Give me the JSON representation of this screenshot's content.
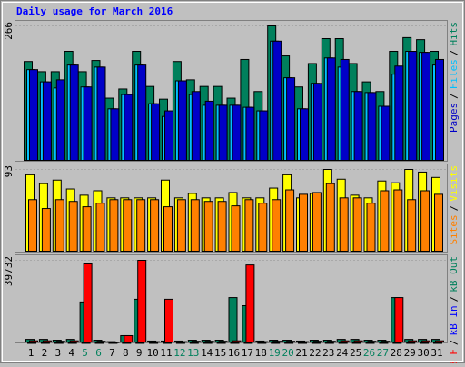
{
  "chart_data": [
    {
      "type": "bar",
      "title": "Daily usage for March 2016",
      "title_color": "#0000ff",
      "ylim": [
        0,
        266
      ],
      "separator": "/",
      "series": [
        {
          "name": "Hits",
          "color": "#00805c",
          "values": [
            196,
            176,
            176,
            216,
            176,
            198,
            124,
            142,
            216,
            147,
            122,
            196,
            160,
            147,
            147,
            124,
            200,
            137,
            266,
            207,
            146,
            192,
            241,
            241,
            192,
            156,
            137,
            216,
            243,
            239,
            216
          ]
        },
        {
          "name": "Files",
          "color": "#00c0ff",
          "values": [
            180,
            156,
            144,
            189,
            146,
            185,
            103,
            131,
            189,
            113,
            88,
            158,
            131,
            110,
            110,
            110,
            106,
            99,
            236,
            164,
            103,
            153,
            203,
            185,
            137,
            135,
            108,
            171,
            216,
            214,
            189
          ]
        },
        {
          "name": "Pages",
          "color": "#0000c8",
          "values": [
            180,
            156,
            160,
            189,
            146,
            185,
            103,
            131,
            189,
            113,
            99,
            158,
            137,
            118,
            110,
            110,
            106,
            99,
            236,
            164,
            103,
            153,
            203,
            200,
            137,
            135,
            108,
            187,
            216,
            214,
            200
          ]
        }
      ]
    },
    {
      "type": "bar",
      "ylim": [
        0,
        93
      ],
      "separator": "/",
      "series": [
        {
          "name": "Visits",
          "color": "#ffff00",
          "values": [
            87,
            77,
            81,
            71,
            64,
            69,
            61,
            61,
            61,
            61,
            81,
            61,
            66,
            61,
            61,
            67,
            61,
            61,
            72,
            87,
            61,
            66,
            93,
            82,
            64,
            61,
            80,
            78,
            93,
            90,
            84
          ]
        },
        {
          "name": "Sites",
          "color": "#ff8000",
          "values": [
            59,
            49,
            59,
            57,
            51,
            55,
            59,
            59,
            59,
            59,
            51,
            59,
            59,
            57,
            57,
            52,
            59,
            55,
            59,
            70,
            65,
            67,
            77,
            61,
            61,
            55,
            69,
            70,
            59,
            69,
            65
          ]
        }
      ]
    },
    {
      "type": "bar",
      "ylim": [
        0,
        39732
      ],
      "separator": "/",
      "categories": [
        "1",
        "2",
        "3",
        "4",
        "5",
        "6",
        "7",
        "8",
        "9",
        "10",
        "11",
        "12",
        "13",
        "14",
        "15",
        "16",
        "17",
        "18",
        "19",
        "20",
        "21",
        "22",
        "23",
        "24",
        "25",
        "26",
        "27",
        "28",
        "29",
        "30",
        "31"
      ],
      "category_colors": [
        "#000000",
        "#000000",
        "#000000",
        "#000000",
        "#00805c",
        "#00805c",
        "#000000",
        "#000000",
        "#000000",
        "#000000",
        "#000000",
        "#00805c",
        "#00805c",
        "#000000",
        "#000000",
        "#000000",
        "#000000",
        "#000000",
        "#00805c",
        "#00805c",
        "#000000",
        "#000000",
        "#000000",
        "#000000",
        "#000000",
        "#00805c",
        "#00805c",
        "#000000",
        "#000000",
        "#000000",
        "#000000"
      ],
      "series": [
        {
          "name": "kB Out",
          "color": "#00805c",
          "values": [
            1700,
            1700,
            1300,
            1700,
            19700,
            1300,
            600,
            3500,
            21000,
            900,
            900,
            900,
            1300,
            1300,
            1300,
            21800,
            17900,
            900,
            1300,
            1300,
            900,
            1300,
            1300,
            1700,
            1700,
            1300,
            1300,
            21800,
            1700,
            1700,
            1700
          ]
        },
        {
          "name": "kB In",
          "color": "#0000ff",
          "values": [
            0,
            0,
            0,
            0,
            0,
            0,
            0,
            0,
            0,
            0,
            0,
            0,
            0,
            0,
            0,
            0,
            0,
            0,
            0,
            0,
            0,
            0,
            0,
            0,
            0,
            0,
            0,
            0,
            0,
            0,
            0
          ]
        },
        {
          "name": "kB F",
          "color": "#ff0000",
          "values": [
            1000,
            1000,
            800,
            1000,
            38000,
            800,
            400,
            3500,
            39732,
            600,
            21000,
            600,
            800,
            800,
            800,
            1000,
            37500,
            600,
            800,
            800,
            600,
            800,
            800,
            1000,
            1000,
            800,
            800,
            21800,
            1000,
            1000,
            1000
          ]
        }
      ]
    }
  ]
}
